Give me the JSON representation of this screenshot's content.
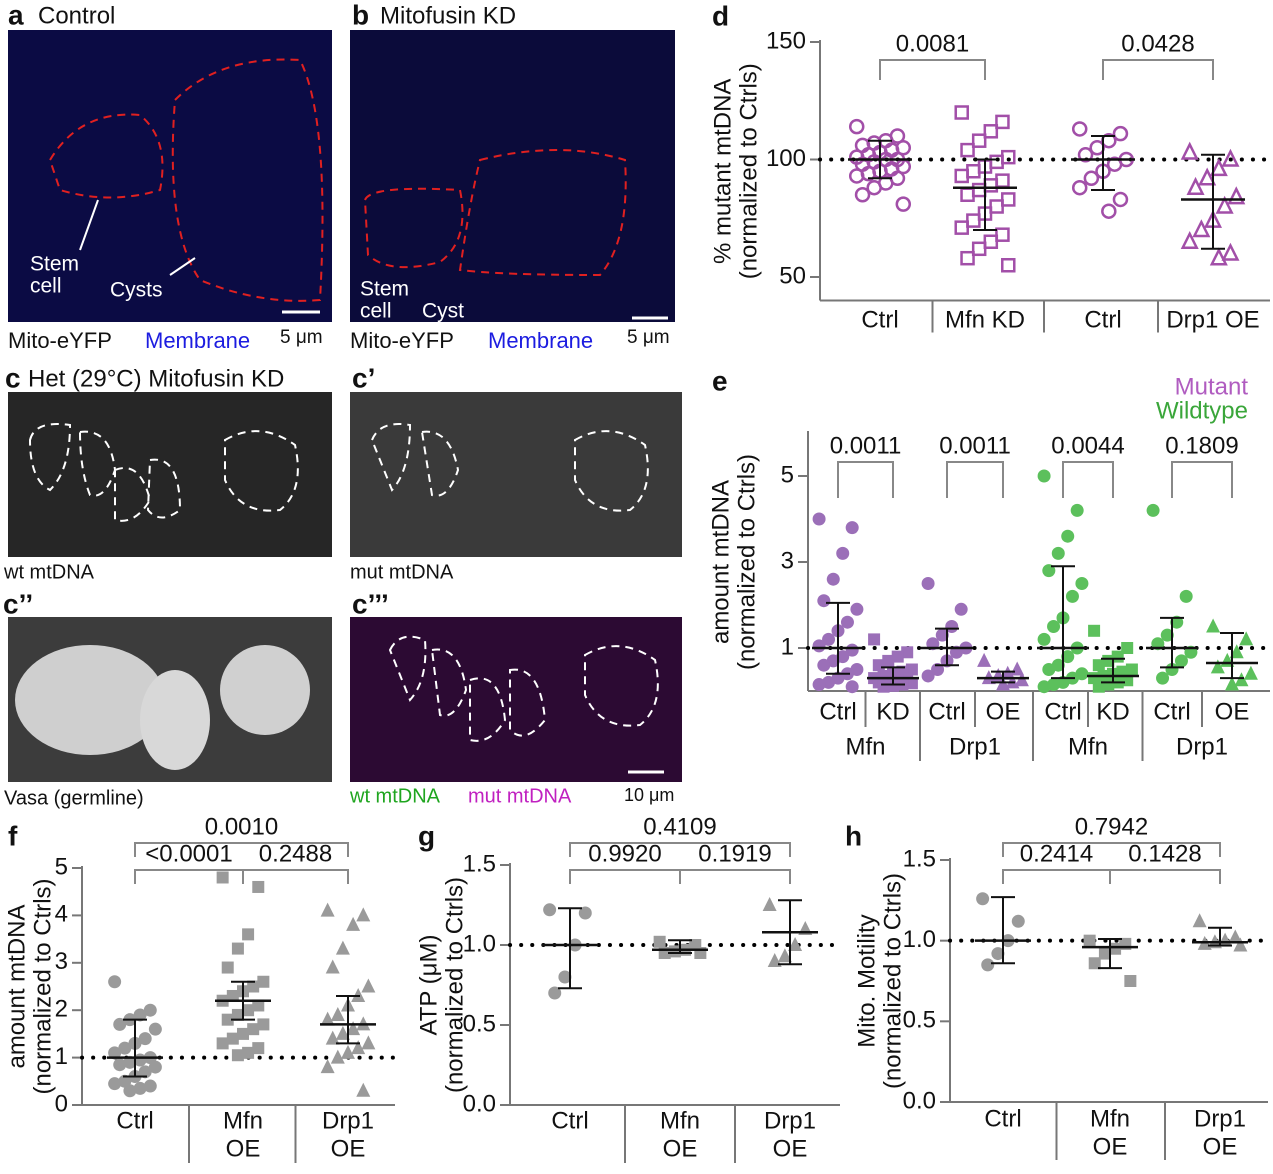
{
  "figure": {
    "panels": [
      {
        "letter": "a",
        "title": "Control",
        "annotations": [
          "Stem",
          "cell",
          "Cysts"
        ],
        "caption": [
          "Mito-eYFP",
          "Membrane"
        ],
        "scale": "5 μm"
      },
      {
        "letter": "b",
        "title": "Mitofusin KD",
        "annotations": [
          "Stem",
          "cell",
          "Cyst"
        ],
        "caption": [
          "Mito-eYFP",
          "Membrane"
        ],
        "scale": "5 μm"
      },
      {
        "letter": "c",
        "title": "Het (29°C) Mitofusin KD",
        "caption": [
          "wt mtDNA"
        ]
      },
      {
        "letter": "c’",
        "caption": [
          "mut mtDNA"
        ]
      },
      {
        "letter": "c’’",
        "caption": [
          "Vasa (germline)"
        ]
      },
      {
        "letter": "c’’’",
        "caption": [
          "wt mtDNA",
          "mut mtDNA"
        ],
        "scale": "10 μm"
      }
    ]
  },
  "chart_data": [
    {
      "type": "dot",
      "letter": "d",
      "ylabel": [
        "% mutant mtDNA",
        "(normalized to Ctrls)"
      ],
      "ylim": [
        40,
        150
      ],
      "yticks": [
        50,
        100,
        150
      ],
      "reference": 100,
      "groups": [
        {
          "label": [
            "Ctrl"
          ],
          "color": "#a24fa8",
          "marker": "circle",
          "filled": false,
          "points": [
            114,
            110,
            108,
            107,
            106,
            105,
            104,
            103,
            102,
            101,
            100,
            100,
            99,
            98,
            97,
            96,
            95,
            94,
            93,
            92,
            90,
            88,
            85,
            81
          ],
          "mean": 100,
          "sd": [
            92,
            108
          ]
        },
        {
          "label": [
            "Mfn KD"
          ],
          "color": "#a24fa8",
          "marker": "square",
          "filled": false,
          "points": [
            120,
            116,
            112,
            108,
            104,
            101,
            99,
            97,
            95,
            93,
            91,
            89,
            87,
            85,
            83,
            80,
            77,
            74,
            71,
            68,
            65,
            62,
            58,
            55
          ],
          "mean": 88,
          "sd": [
            70,
            100
          ]
        },
        {
          "label": [
            "Ctrl"
          ],
          "color": "#a24fa8",
          "marker": "circle",
          "filled": false,
          "points": [
            113,
            111,
            108,
            105,
            102,
            100,
            98,
            95,
            92,
            88,
            83,
            78
          ],
          "mean": 100,
          "sd": [
            87,
            110
          ]
        },
        {
          "label": [
            "Drp1 OE"
          ],
          "color": "#a24fa8",
          "marker": "triangle",
          "filled": false,
          "points": [
            103,
            100,
            96,
            92,
            88,
            84,
            80,
            74,
            70,
            65,
            60,
            58
          ],
          "mean": 83,
          "sd": [
            62,
            102
          ]
        }
      ],
      "comparisons": [
        {
          "groups": [
            0,
            1
          ],
          "label": "0.0081"
        },
        {
          "groups": [
            2,
            3
          ],
          "label": "0.0428"
        }
      ]
    },
    {
      "type": "dot",
      "letter": "e",
      "ylabel": [
        "amount mtDNA",
        "(normalized to Ctrls)"
      ],
      "ylim": [
        0,
        6
      ],
      "yticks": [
        1,
        3,
        5
      ],
      "reference": 1,
      "legend": [
        {
          "name": "Mutant",
          "color": "#b05cc0"
        },
        {
          "name": "Wildtype",
          "color": "#3aa63a"
        }
      ],
      "supergroups": [
        "Mfn",
        "Drp1",
        "Mfn",
        "Drp1"
      ],
      "groups": [
        {
          "label": [
            "Ctrl"
          ],
          "color": "#9b6fb8",
          "marker": "circle",
          "filled": true,
          "points": [
            4.0,
            3.8,
            3.2,
            2.6,
            2.1,
            1.9,
            1.6,
            1.4,
            1.2,
            1.05,
            0.95,
            0.8,
            0.7,
            0.6,
            0.5,
            0.4,
            0.3,
            0.2,
            0.15,
            0.1
          ],
          "mean": 1.0,
          "sd": [
            0.4,
            2.05
          ]
        },
        {
          "label": [
            "KD"
          ],
          "color": "#9b6fb8",
          "marker": "square",
          "filled": true,
          "points": [
            1.2,
            0.9,
            0.8,
            0.7,
            0.6,
            0.5,
            0.45,
            0.4,
            0.35,
            0.3,
            0.28,
            0.25,
            0.22,
            0.2,
            0.18,
            0.15,
            0.12,
            0.1
          ],
          "mean": 0.3,
          "sd": [
            0.15,
            0.55
          ]
        },
        {
          "label": [
            "Ctrl"
          ],
          "color": "#9b6fb8",
          "marker": "circle",
          "filled": true,
          "points": [
            2.5,
            1.9,
            1.5,
            1.3,
            1.1,
            1.0,
            0.9,
            0.7,
            0.5,
            0.35
          ],
          "mean": 1.0,
          "sd": [
            0.6,
            1.45
          ]
        },
        {
          "label": [
            "OE"
          ],
          "color": "#9b6fb8",
          "marker": "triangle",
          "filled": true,
          "points": [
            0.7,
            0.5,
            0.4,
            0.35,
            0.3,
            0.25,
            0.2,
            0.15
          ],
          "mean": 0.3,
          "sd": [
            0.2,
            0.45
          ]
        },
        {
          "label": [
            "Ctrl"
          ],
          "color": "#5cc05c",
          "marker": "circle",
          "filled": true,
          "points": [
            5.0,
            4.2,
            3.6,
            3.2,
            2.8,
            2.5,
            2.2,
            1.7,
            1.5,
            1.2,
            1.0,
            0.8,
            0.6,
            0.5,
            0.4,
            0.3,
            0.2,
            0.15,
            0.1
          ],
          "mean": 1.0,
          "sd": [
            0.3,
            2.9
          ]
        },
        {
          "label": [
            "KD"
          ],
          "color": "#5cc05c",
          "marker": "square",
          "filled": true,
          "points": [
            1.4,
            1.0,
            0.8,
            0.7,
            0.6,
            0.5,
            0.45,
            0.4,
            0.35,
            0.3,
            0.25,
            0.2,
            0.15,
            0.1
          ],
          "mean": 0.35,
          "sd": [
            0.2,
            0.75
          ]
        },
        {
          "label": [
            "Ctrl"
          ],
          "color": "#5cc05c",
          "marker": "circle",
          "filled": true,
          "points": [
            4.2,
            2.2,
            1.6,
            1.3,
            1.1,
            0.9,
            0.7,
            0.5,
            0.3
          ],
          "mean": 1.0,
          "sd": [
            0.55,
            1.7
          ]
        },
        {
          "label": [
            "OE"
          ],
          "color": "#5cc05c",
          "marker": "triangle",
          "filled": true,
          "points": [
            1.5,
            1.2,
            0.9,
            0.7,
            0.55,
            0.4,
            0.25,
            0.15
          ],
          "mean": 0.65,
          "sd": [
            0.3,
            1.35
          ]
        }
      ],
      "comparisons": [
        {
          "groups": [
            0,
            1
          ],
          "label": "0.0011"
        },
        {
          "groups": [
            2,
            3
          ],
          "label": "0.0011"
        },
        {
          "groups": [
            4,
            5
          ],
          "label": "0.0044"
        },
        {
          "groups": [
            6,
            7
          ],
          "label": "0.1809"
        }
      ]
    },
    {
      "type": "dot",
      "letter": "f",
      "ylabel": [
        "amount mtDNA",
        "(normalized to Ctrls)"
      ],
      "ylim": [
        0,
        5
      ],
      "yticks": [
        0,
        1,
        2,
        3,
        4,
        5
      ],
      "reference": 1,
      "groups": [
        {
          "label": [
            "Ctrl"
          ],
          "color": "#9a9a9a",
          "marker": "circle",
          "filled": true,
          "points": [
            2.6,
            2.0,
            1.9,
            1.8,
            1.7,
            1.6,
            1.4,
            1.3,
            1.2,
            1.1,
            1.0,
            0.95,
            0.9,
            0.85,
            0.8,
            0.7,
            0.6,
            0.5,
            0.45,
            0.4,
            0.35,
            0.3
          ],
          "mean": 1.0,
          "sd": [
            0.6,
            1.8
          ]
        },
        {
          "label": [
            "Mfn",
            "OE"
          ],
          "color": "#9a9a9a",
          "marker": "square",
          "filled": true,
          "points": [
            4.8,
            4.6,
            3.6,
            3.3,
            2.9,
            2.6,
            2.5,
            2.4,
            2.3,
            2.2,
            2.1,
            2.0,
            1.9,
            1.8,
            1.7,
            1.6,
            1.5,
            1.4,
            1.3,
            1.2,
            1.1,
            1.05
          ],
          "mean": 2.2,
          "sd": [
            1.8,
            2.6
          ]
        },
        {
          "label": [
            "Drp1",
            "OE"
          ],
          "color": "#9a9a9a",
          "marker": "triangle",
          "filled": true,
          "points": [
            4.1,
            4.0,
            3.8,
            3.3,
            2.9,
            2.5,
            2.3,
            2.1,
            1.9,
            1.8,
            1.7,
            1.6,
            1.5,
            1.4,
            1.3,
            1.2,
            1.1,
            1.0,
            0.8,
            0.3
          ],
          "mean": 1.7,
          "sd": [
            1.3,
            2.3
          ]
        }
      ],
      "comparisons": [
        {
          "groups": [
            0,
            2
          ],
          "label": "0.0010"
        },
        {
          "groups": [
            0,
            1
          ],
          "label": "<0.0001"
        },
        {
          "groups": [
            1,
            2
          ],
          "label": "0.2488"
        }
      ]
    },
    {
      "type": "dot",
      "letter": "g",
      "ylabel": [
        "ATP (μM)",
        "(normalized to Ctrls)"
      ],
      "ylim": [
        0,
        1.5
      ],
      "yticks": [
        {
          "value": 0,
          "label": "0.0"
        },
        0.5,
        {
          "value": 1,
          "label": "1.0"
        },
        1.5
      ],
      "reference": 1,
      "groups": [
        {
          "label": [
            "Ctrl"
          ],
          "color": "#9a9a9a",
          "marker": "circle",
          "filled": true,
          "points": [
            1.22,
            1.2,
            1.0,
            0.8,
            0.7
          ],
          "mean": 1.0,
          "sd": [
            0.73,
            1.23
          ]
        },
        {
          "label": [
            "Mfn",
            "OE"
          ],
          "color": "#9a9a9a",
          "marker": "square",
          "filled": true,
          "points": [
            1.02,
            1.0,
            0.97,
            0.96,
            0.95,
            0.95
          ],
          "mean": 0.97,
          "sd": [
            0.95,
            1.03
          ]
        },
        {
          "label": [
            "Drp1",
            "OE"
          ],
          "color": "#9a9a9a",
          "marker": "triangle",
          "filled": true,
          "points": [
            1.25,
            1.1,
            1.0,
            0.93,
            0.9
          ],
          "mean": 1.08,
          "sd": [
            0.88,
            1.28
          ]
        }
      ],
      "comparisons": [
        {
          "groups": [
            0,
            2
          ],
          "label": "0.4109"
        },
        {
          "groups": [
            0,
            1
          ],
          "label": "0.9920"
        },
        {
          "groups": [
            1,
            2
          ],
          "label": "0.1919"
        }
      ]
    },
    {
      "type": "dot",
      "letter": "h",
      "ylabel": [
        "Mito. Motility",
        "(normalized to Ctrls)"
      ],
      "ylim": [
        0,
        1.5
      ],
      "yticks": [
        {
          "value": 0,
          "label": "0.0"
        },
        0.5,
        {
          "value": 1,
          "label": "1.0"
        },
        1.5
      ],
      "reference": 1,
      "groups": [
        {
          "label": [
            "Ctrl"
          ],
          "color": "#9a9a9a",
          "marker": "circle",
          "filled": true,
          "points": [
            1.26,
            1.12,
            1.0,
            0.92,
            0.85
          ],
          "mean": 1.0,
          "sd": [
            0.86,
            1.27
          ]
        },
        {
          "label": [
            "Mfn",
            "OE"
          ],
          "color": "#9a9a9a",
          "marker": "square",
          "filled": true,
          "points": [
            1.0,
            0.98,
            0.95,
            0.92,
            0.86,
            0.75
          ],
          "mean": 0.96,
          "sd": [
            0.83,
            1.01
          ]
        },
        {
          "label": [
            "Drp1",
            "OE"
          ],
          "color": "#9a9a9a",
          "marker": "triangle",
          "filled": true,
          "points": [
            1.12,
            1.02,
            1.0,
            0.99,
            0.98,
            0.97
          ],
          "mean": 0.99,
          "sd": [
            0.97,
            1.08
          ]
        }
      ],
      "comparisons": [
        {
          "groups": [
            0,
            2
          ],
          "label": "0.7942"
        },
        {
          "groups": [
            0,
            1
          ],
          "label": "0.2414"
        },
        {
          "groups": [
            1,
            2
          ],
          "label": "0.1428"
        }
      ]
    }
  ]
}
